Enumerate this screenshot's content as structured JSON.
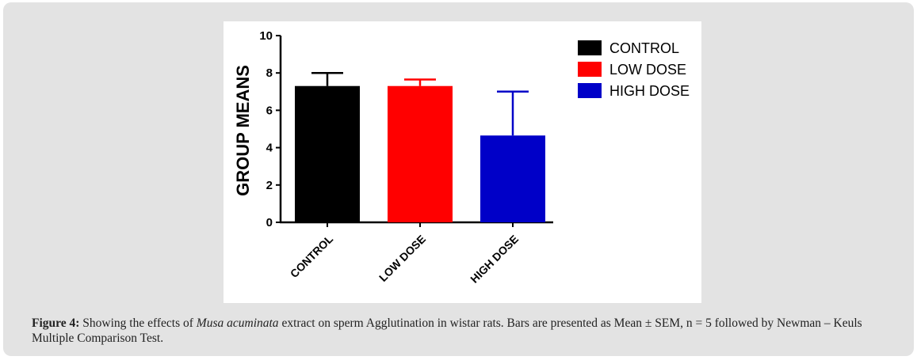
{
  "chart_data": {
    "type": "bar",
    "categories": [
      "CONTROL",
      "LOW DOSE",
      "HIGH DOSE"
    ],
    "values": [
      7.3,
      7.3,
      4.65
    ],
    "errors": [
      0.7,
      0.35,
      2.35
    ],
    "colors": [
      "#000000",
      "#ff0000",
      "#0000c8"
    ],
    "ylabel": "GROUP MEANS",
    "xlabel": "",
    "ylim": [
      0,
      10
    ],
    "yticks": [
      0,
      2,
      4,
      6,
      8,
      10
    ],
    "legend": {
      "position": "top-right",
      "entries": [
        "CONTROL",
        "LOW DOSE",
        "HIGH DOSE"
      ]
    },
    "grid": false
  },
  "caption": {
    "label": "Figure 4",
    "colon": ":",
    "text_before": " Showing the effects of ",
    "italic": "Musa acuminata",
    "text_after": " extract on sperm Agglutination in wistar rats. Bars are presented as Mean ± SEM, n = 5 followed by Newman – Keuls Multiple Comparison Test."
  }
}
